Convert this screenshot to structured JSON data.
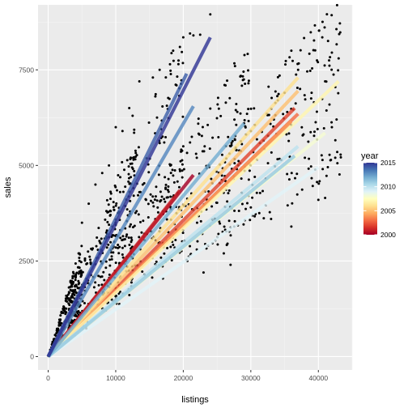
{
  "chart_data": {
    "type": "scatter",
    "xlabel": "listings",
    "ylabel": "sales",
    "xlim": [
      -1500,
      45000
    ],
    "ylim": [
      -350,
      9200
    ],
    "x_ticks": [
      0,
      10000,
      20000,
      30000,
      40000
    ],
    "x_tick_labels": [
      "0",
      "10000",
      "20000",
      "30000",
      "40000"
    ],
    "y_ticks": [
      0,
      2500,
      5000,
      7500
    ],
    "y_tick_labels": [
      "0",
      "2500",
      "5000",
      "7500"
    ],
    "grid": true,
    "legend": {
      "title": "year",
      "position": "right",
      "range": [
        2000,
        2015
      ],
      "ticks": [
        2000,
        2005,
        2010,
        2015
      ],
      "tick_labels": [
        "2000",
        "2005",
        "2010",
        "2015"
      ],
      "palette": [
        "#a50026",
        "#d73027",
        "#f46d43",
        "#fdae61",
        "#fee090",
        "#ffffbf",
        "#e0f3f8",
        "#abd9e9",
        "#74add1",
        "#4575b4",
        "#313695"
      ]
    },
    "point_color": "#000000",
    "point_clusters": [
      {
        "x0": 0,
        "x1": 5000,
        "slope_lo": 0.14,
        "slope_hi": 0.6,
        "n": 320
      },
      {
        "x0": 3000,
        "x1": 13000,
        "slope_lo": 0.13,
        "slope_hi": 0.48,
        "n": 260
      },
      {
        "x0": 8000,
        "x1": 20000,
        "slope_lo": 0.15,
        "slope_hi": 0.44,
        "n": 200
      },
      {
        "x0": 15000,
        "x1": 30000,
        "slope_lo": 0.12,
        "slope_hi": 0.28,
        "n": 180
      },
      {
        "x0": 25000,
        "x1": 43500,
        "slope_lo": 0.11,
        "slope_hi": 0.22,
        "n": 220
      }
    ],
    "outlier_points": [
      [
        24000,
        8950
      ],
      [
        22500,
        8420
      ],
      [
        21500,
        8400
      ],
      [
        21000,
        8450
      ],
      [
        20000,
        8350
      ],
      [
        19500,
        8100
      ],
      [
        18500,
        8000
      ],
      [
        16500,
        7500
      ],
      [
        15500,
        7300
      ],
      [
        13500,
        7200
      ],
      [
        12000,
        6500
      ],
      [
        12500,
        6300
      ],
      [
        21000,
        5600
      ],
      [
        20000,
        5500
      ],
      [
        22000,
        5200
      ],
      [
        29000,
        6100
      ],
      [
        28000,
        6400
      ],
      [
        30000,
        5900
      ],
      [
        34000,
        6700
      ],
      [
        35000,
        6900
      ],
      [
        36000,
        8000
      ],
      [
        37000,
        7500
      ],
      [
        39000,
        6900
      ],
      [
        41000,
        7200
      ],
      [
        42000,
        7950
      ],
      [
        43000,
        7800
      ],
      [
        33000,
        3600
      ],
      [
        30000,
        3900
      ],
      [
        23000,
        2200
      ],
      [
        22000,
        2800
      ],
      [
        26000,
        2700
      ],
      [
        27000,
        2400
      ],
      [
        36000,
        3400
      ],
      [
        40000,
        4100
      ],
      [
        41000,
        4150
      ],
      [
        42500,
        5200
      ],
      [
        42000,
        6000
      ],
      [
        38000,
        5200
      ],
      [
        5000,
        3500
      ],
      [
        6000,
        4000
      ],
      [
        7000,
        4500
      ],
      [
        8000,
        4800
      ],
      [
        9000,
        5000
      ],
      [
        10000,
        6000
      ],
      [
        11000,
        5900
      ],
      [
        14000,
        4500
      ],
      [
        13500,
        4300
      ],
      [
        17000,
        3800
      ],
      [
        6500,
        2800
      ],
      [
        9500,
        3400
      ]
    ],
    "series": [
      {
        "year": 2000,
        "x_start": 0,
        "x_end": 21500,
        "y_end": 4750
      },
      {
        "year": 2001,
        "x_start": 0,
        "x_end": 19500,
        "y_end": 4350
      },
      {
        "year": 2002,
        "x_start": 0,
        "x_end": 36500,
        "y_end": 6500
      },
      {
        "year": 2003,
        "x_start": 0,
        "x_end": 37000,
        "y_end": 6350
      },
      {
        "year": 2004,
        "x_start": 0,
        "x_end": 36000,
        "y_end": 6150
      },
      {
        "year": 2005,
        "x_start": 0,
        "x_end": 37000,
        "y_end": 6950
      },
      {
        "year": 2006,
        "x_start": 0,
        "x_end": 37000,
        "y_end": 7300
      },
      {
        "year": 2007,
        "x_start": 0,
        "x_end": 43000,
        "y_end": 7200
      },
      {
        "year": 2008,
        "x_start": 0,
        "x_end": 41000,
        "y_end": 5850
      },
      {
        "year": 2009,
        "x_start": 0,
        "x_end": 40000,
        "y_end": 4950
      },
      {
        "year": 2010,
        "x_start": 0,
        "x_end": 37000,
        "y_end": 5500
      },
      {
        "year": 2011,
        "x_start": 0,
        "x_end": 36500,
        "y_end": 5250
      },
      {
        "year": 2012,
        "x_start": 0,
        "x_end": 29000,
        "y_end": 6100
      },
      {
        "year": 2013,
        "x_start": 0,
        "x_end": 21500,
        "y_end": 6550
      },
      {
        "year": 2014,
        "x_start": 0,
        "x_end": 20500,
        "y_end": 7400
      },
      {
        "year": 2015,
        "x_start": 0,
        "x_end": 24000,
        "y_end": 8350
      }
    ]
  }
}
